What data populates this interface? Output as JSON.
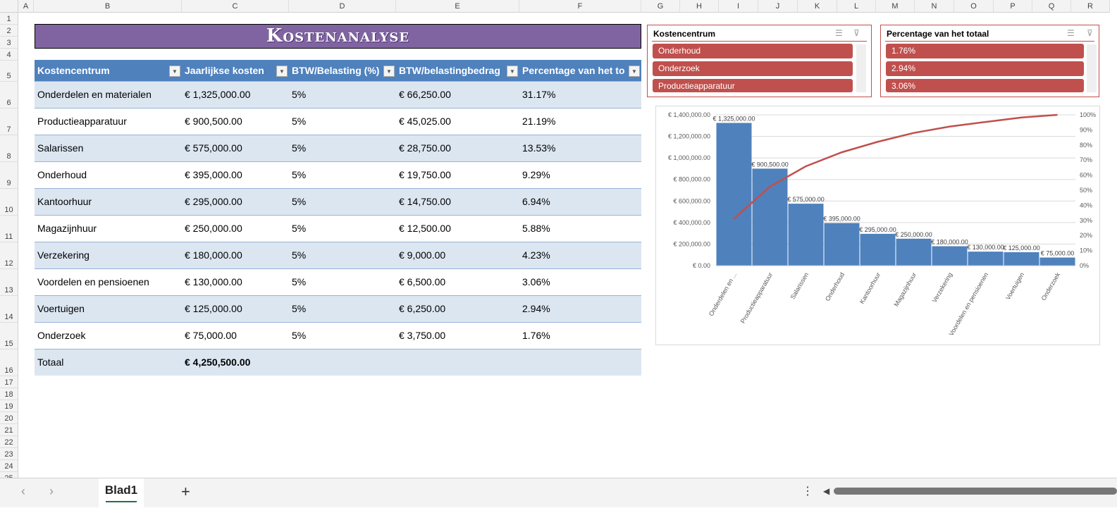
{
  "columns": [
    "A",
    "B",
    "C",
    "D",
    "E",
    "F",
    "G",
    "H",
    "I",
    "J",
    "K",
    "L",
    "M",
    "N",
    "O",
    "P",
    "Q",
    "R"
  ],
  "rows": [
    "1",
    "2",
    "3",
    "4",
    "5",
    "6",
    "7",
    "8",
    "9",
    "10",
    "11",
    "12",
    "13",
    "14",
    "15",
    "16",
    "17",
    "18",
    "19",
    "20",
    "21",
    "22",
    "23",
    "24",
    "25"
  ],
  "title": "Kostenanalyse",
  "table": {
    "headers": [
      "Kostencentrum",
      "Jaarlijkse kosten",
      "BTW/Belasting (%)",
      "BTW/belastingbedrag",
      "Percentage van het to"
    ],
    "rows": [
      [
        "Onderdelen en materialen",
        "€ 1,325,000.00",
        "5%",
        "€ 66,250.00",
        "31.17%"
      ],
      [
        "Productieapparatuur",
        "€ 900,500.00",
        "5%",
        "€ 45,025.00",
        "21.19%"
      ],
      [
        "Salarissen",
        "€ 575,000.00",
        "5%",
        "€ 28,750.00",
        "13.53%"
      ],
      [
        "Onderhoud",
        "€ 395,000.00",
        "5%",
        "€ 19,750.00",
        "9.29%"
      ],
      [
        "Kantoorhuur",
        "€ 295,000.00",
        "5%",
        "€ 14,750.00",
        "6.94%"
      ],
      [
        "Magazijnhuur",
        "€ 250,000.00",
        "5%",
        "€ 12,500.00",
        "5.88%"
      ],
      [
        "Verzekering",
        "€ 180,000.00",
        "5%",
        "€ 9,000.00",
        "4.23%"
      ],
      [
        "Voordelen en pensioenen",
        "€ 130,000.00",
        "5%",
        "€ 6,500.00",
        "3.06%"
      ],
      [
        "Voertuigen",
        "€ 125,000.00",
        "5%",
        "€ 6,250.00",
        "2.94%"
      ],
      [
        "Onderzoek",
        "€ 75,000.00",
        "5%",
        "€ 3,750.00",
        "1.76%"
      ]
    ],
    "total_label": "Totaal",
    "total_value": "€ 4,250,500.00"
  },
  "slicers": [
    {
      "title": "Kostencentrum",
      "items": [
        "Onderhoud",
        "Onderzoek",
        "Productieapparatuur"
      ]
    },
    {
      "title": "Percentage van het totaal",
      "items": [
        "1.76%",
        "2.94%",
        "3.06%"
      ]
    }
  ],
  "chart_data": {
    "type": "bar",
    "categories": [
      "Onderdelen en ...",
      "Productieapparatuur",
      "Salarissen",
      "Onderhoud",
      "Kantoorhuur",
      "Magazijnhuur",
      "Verzekering",
      "Voordelen en pensioenen",
      "Voertuigen",
      "Onderzoek"
    ],
    "values": [
      1325000,
      900500,
      575000,
      395000,
      295000,
      250000,
      180000,
      130000,
      125000,
      75000
    ],
    "data_labels": [
      "€ 1,325,000.00",
      "€ 900,500.00",
      "€ 575,000.00",
      "€ 395,000.00",
      "€ 295,000.00",
      "€ 250,000.00",
      "€ 180,000.00",
      "€ 130,000.00",
      "€ 125,000.00",
      "€ 75,000.00"
    ],
    "cumulative_percent": [
      31.17,
      52.36,
      65.89,
      75.18,
      82.12,
      88.0,
      92.23,
      95.29,
      98.23,
      100
    ],
    "ylim": [
      0,
      1400000
    ],
    "y_ticks": [
      "€ 0.00",
      "€ 200,000.00",
      "€ 400,000.00",
      "€ 600,000.00",
      "€ 800,000.00",
      "€ 1,000,000.00",
      "€ 1,200,000.00",
      "€ 1,400,000.00"
    ],
    "y2lim": [
      0,
      100
    ],
    "y2_ticks": [
      "0%",
      "10%",
      "20%",
      "30%",
      "40%",
      "50%",
      "60%",
      "70%",
      "80%",
      "90%",
      "100%"
    ],
    "bar_color": "#4f81bd",
    "line_color": "#c0504d",
    "grid": true
  },
  "sheet_tab": "Blad1",
  "add_sheet": "+"
}
